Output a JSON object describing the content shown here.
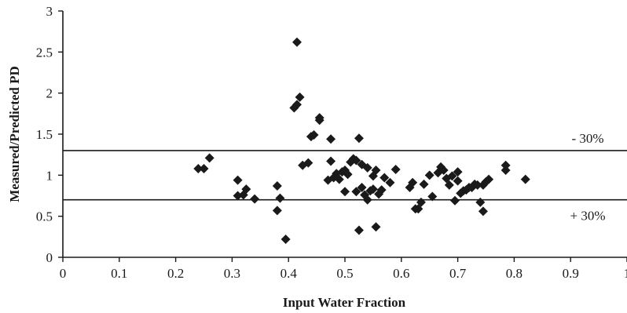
{
  "chart_data": {
    "type": "scatter",
    "xlabel": "Input Water Fraction",
    "ylabel": "Measured/Predicted PD",
    "xlim": [
      0,
      1
    ],
    "ylim": [
      0,
      3
    ],
    "x_ticks": [
      "0",
      "0.1",
      "0.2",
      "0.3",
      "0.4",
      "0.5",
      "0.6",
      "0.7",
      "0.8",
      "0.9",
      "1"
    ],
    "y_ticks": [
      "0",
      "0.5",
      "1",
      "1.5",
      "2",
      "2.5",
      "3"
    ],
    "grid": false,
    "reference_lines": [
      {
        "y": 1.3,
        "label": "- 30%"
      },
      {
        "y": 0.7,
        "label": "+ 30%"
      }
    ],
    "marker": "diamond",
    "color": "#1a1a1a",
    "points": [
      [
        0.24,
        1.08
      ],
      [
        0.25,
        1.08
      ],
      [
        0.26,
        1.21
      ],
      [
        0.31,
        0.94
      ],
      [
        0.31,
        0.75
      ],
      [
        0.32,
        0.76
      ],
      [
        0.325,
        0.83
      ],
      [
        0.34,
        0.71
      ],
      [
        0.38,
        0.87
      ],
      [
        0.38,
        0.57
      ],
      [
        0.385,
        0.72
      ],
      [
        0.395,
        0.22
      ],
      [
        0.41,
        1.82
      ],
      [
        0.415,
        2.62
      ],
      [
        0.415,
        1.86
      ],
      [
        0.42,
        1.95
      ],
      [
        0.425,
        1.12
      ],
      [
        0.435,
        1.15
      ],
      [
        0.44,
        1.47
      ],
      [
        0.445,
        1.49
      ],
      [
        0.455,
        1.7
      ],
      [
        0.455,
        1.67
      ],
      [
        0.47,
        0.94
      ],
      [
        0.475,
        1.44
      ],
      [
        0.475,
        1.17
      ],
      [
        0.48,
        0.97
      ],
      [
        0.485,
        1.02
      ],
      [
        0.49,
        0.95
      ],
      [
        0.495,
        1.04
      ],
      [
        0.5,
        0.8
      ],
      [
        0.5,
        1.06
      ],
      [
        0.505,
        1.01
      ],
      [
        0.51,
        1.16
      ],
      [
        0.515,
        1.2
      ],
      [
        0.52,
        1.18
      ],
      [
        0.52,
        0.8
      ],
      [
        0.525,
        1.45
      ],
      [
        0.525,
        0.33
      ],
      [
        0.53,
        1.13
      ],
      [
        0.53,
        0.85
      ],
      [
        0.535,
        0.76
      ],
      [
        0.54,
        1.09
      ],
      [
        0.54,
        0.7
      ],
      [
        0.545,
        0.81
      ],
      [
        0.55,
        0.99
      ],
      [
        0.55,
        0.83
      ],
      [
        0.555,
        1.06
      ],
      [
        0.555,
        0.37
      ],
      [
        0.56,
        0.77
      ],
      [
        0.565,
        0.82
      ],
      [
        0.57,
        0.97
      ],
      [
        0.58,
        0.91
      ],
      [
        0.59,
        1.07
      ],
      [
        0.615,
        0.85
      ],
      [
        0.62,
        0.91
      ],
      [
        0.625,
        0.59
      ],
      [
        0.63,
        0.59
      ],
      [
        0.635,
        0.67
      ],
      [
        0.64,
        0.89
      ],
      [
        0.65,
        1.0
      ],
      [
        0.655,
        0.74
      ],
      [
        0.665,
        1.03
      ],
      [
        0.67,
        1.1
      ],
      [
        0.675,
        1.06
      ],
      [
        0.68,
        0.96
      ],
      [
        0.685,
        0.88
      ],
      [
        0.69,
        0.99
      ],
      [
        0.695,
        0.69
      ],
      [
        0.7,
        1.04
      ],
      [
        0.7,
        0.93
      ],
      [
        0.705,
        0.78
      ],
      [
        0.71,
        0.81
      ],
      [
        0.715,
        0.82
      ],
      [
        0.72,
        0.85
      ],
      [
        0.725,
        0.85
      ],
      [
        0.73,
        0.89
      ],
      [
        0.735,
        0.88
      ],
      [
        0.74,
        0.67
      ],
      [
        0.745,
        0.88
      ],
      [
        0.745,
        0.56
      ],
      [
        0.75,
        0.92
      ],
      [
        0.755,
        0.95
      ],
      [
        0.785,
        1.06
      ],
      [
        0.785,
        1.12
      ],
      [
        0.82,
        0.95
      ]
    ]
  }
}
